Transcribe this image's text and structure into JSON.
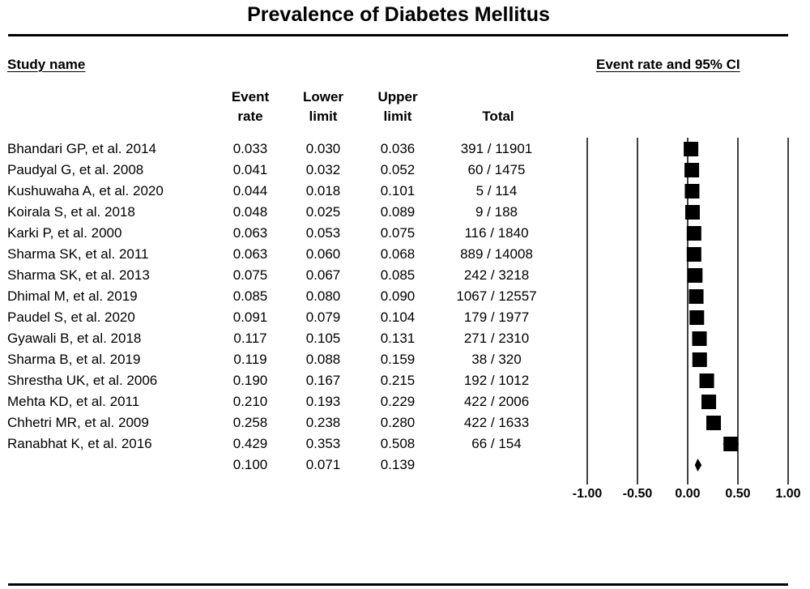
{
  "title": "Prevalence of Diabetes Mellitus",
  "headers": {
    "study_name": "Study name",
    "ci": "Event rate and 95% CI",
    "event_rate": [
      "Event",
      "rate"
    ],
    "lower_limit": [
      "Lower",
      "limit"
    ],
    "upper_limit": [
      "Upper",
      "limit"
    ],
    "total": "Total"
  },
  "chart_data": {
    "type": "forest",
    "xlim": [
      -1.0,
      1.0
    ],
    "x_ticks": [
      "-1.00",
      "-0.50",
      "0.00",
      "0.50",
      "1.00"
    ],
    "x_tick_values": [
      -1.0,
      -0.5,
      0.0,
      0.5,
      1.0
    ],
    "studies": [
      {
        "name": "Bhandari GP, et al. 2014",
        "event_rate": "0.033",
        "lower": "0.030",
        "upper": "0.036",
        "total": "391 / 11901"
      },
      {
        "name": "Paudyal G, et al. 2008",
        "event_rate": "0.041",
        "lower": "0.032",
        "upper": "0.052",
        "total": "60 / 1475"
      },
      {
        "name": "Kushuwaha A, et al. 2020",
        "event_rate": "0.044",
        "lower": "0.018",
        "upper": "0.101",
        "total": "5 / 114"
      },
      {
        "name": "Koirala S, et al. 2018",
        "event_rate": "0.048",
        "lower": "0.025",
        "upper": "0.089",
        "total": "9 / 188"
      },
      {
        "name": "Karki P, et al. 2000",
        "event_rate": "0.063",
        "lower": "0.053",
        "upper": "0.075",
        "total": "116 / 1840"
      },
      {
        "name": "Sharma SK, et al. 2011",
        "event_rate": "0.063",
        "lower": "0.060",
        "upper": "0.068",
        "total": "889 / 14008"
      },
      {
        "name": "Sharma SK, et al. 2013",
        "event_rate": "0.075",
        "lower": "0.067",
        "upper": "0.085",
        "total": "242 / 3218"
      },
      {
        "name": "Dhimal M, et al. 2019",
        "event_rate": "0.085",
        "lower": "0.080",
        "upper": "0.090",
        "total": "1067 / 12557"
      },
      {
        "name": "Paudel S, et al. 2020",
        "event_rate": "0.091",
        "lower": "0.079",
        "upper": "0.104",
        "total": "179 / 1977"
      },
      {
        "name": "Gyawali B, et al. 2018",
        "event_rate": "0.117",
        "lower": "0.105",
        "upper": "0.131",
        "total": "271 / 2310"
      },
      {
        "name": "Sharma B, et al. 2019",
        "event_rate": "0.119",
        "lower": "0.088",
        "upper": "0.159",
        "total": "38 / 320"
      },
      {
        "name": "Shrestha UK, et al. 2006",
        "event_rate": "0.190",
        "lower": "0.167",
        "upper": "0.215",
        "total": "192 / 1012"
      },
      {
        "name": "Mehta KD, et al. 2011",
        "event_rate": "0.210",
        "lower": "0.193",
        "upper": "0.229",
        "total": "422 / 2006"
      },
      {
        "name": "Chhetri MR,  et al. 2009",
        "event_rate": "0.258",
        "lower": "0.238",
        "upper": "0.280",
        "total": "422 / 1633"
      },
      {
        "name": "Ranabhat K, et al. 2016",
        "event_rate": "0.429",
        "lower": "0.353",
        "upper": "0.508",
        "total": "66 / 154"
      }
    ],
    "pooled": {
      "event_rate": "0.100",
      "lower": "0.071",
      "upper": "0.139"
    }
  }
}
